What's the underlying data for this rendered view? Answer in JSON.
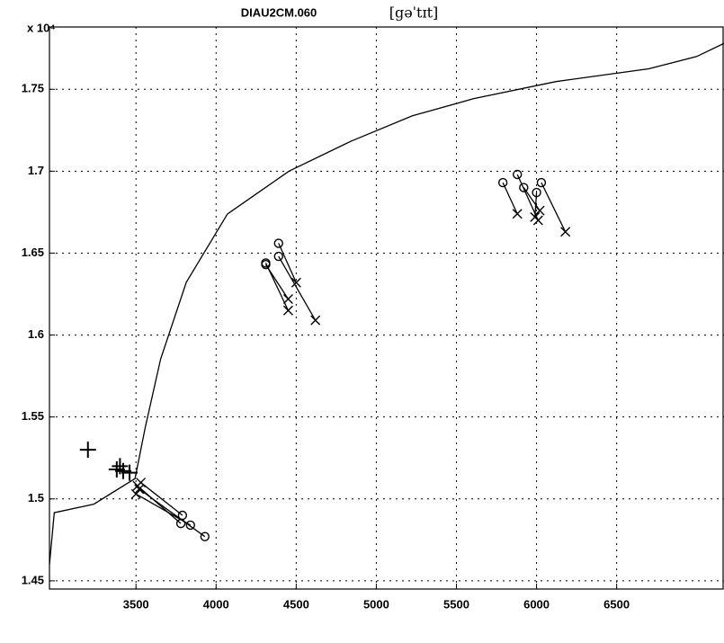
{
  "chart_data": {
    "type": "line",
    "title": "DIAU2CM.060",
    "subtitle": "[gəˈtɪt]",
    "y_multiplier": "x 10⁴",
    "xlim": [
      2960,
      7170
    ],
    "ylim": [
      14450,
      17880
    ],
    "xticks": [
      3500,
      4000,
      4500,
      5000,
      5500,
      6000,
      6500
    ],
    "yticks": [
      {
        "value": 14500,
        "label": "1.45"
      },
      {
        "value": 15000,
        "label": "1.5"
      },
      {
        "value": 15500,
        "label": "1.55"
      },
      {
        "value": 16000,
        "label": "1.6"
      },
      {
        "value": 16500,
        "label": "1.65"
      },
      {
        "value": 17000,
        "label": "1.7"
      },
      {
        "value": 17500,
        "label": "1.75"
      }
    ],
    "grid": true,
    "color": "#000000",
    "series": [
      {
        "x": [
          2960,
          2990,
          3237,
          3494,
          3558,
          3654,
          3814,
          4071,
          4455,
          4840,
          5225,
          5609,
          6122,
          6700,
          7000,
          7170
        ],
        "values": [
          14600,
          14916,
          14968,
          15124,
          15437,
          15854,
          16322,
          16739,
          17000,
          17182,
          17338,
          17443,
          17547,
          17625,
          17700,
          17780
        ]
      },
      {
        "x": [
          5790,
          5880
        ],
        "values": [
          16930,
          16740
        ],
        "start_marker": "o",
        "end_marker": "x"
      },
      {
        "x": [
          5880,
          6010
        ],
        "values": [
          16980,
          16700
        ],
        "start_marker": "o",
        "end_marker": "x"
      },
      {
        "x": [
          5920,
          6020
        ],
        "values": [
          16900,
          16760
        ],
        "start_marker": "o",
        "end_marker": "x"
      },
      {
        "x": [
          6000,
          5990
        ],
        "values": [
          16870,
          16720
        ],
        "start_marker": "o",
        "end_marker": "x"
      },
      {
        "x": [
          6030,
          6180
        ],
        "values": [
          16930,
          16630
        ],
        "start_marker": "o",
        "end_marker": "x"
      },
      {
        "x": [
          4310,
          4450
        ],
        "values": [
          16430,
          16220
        ],
        "start_marker": "o",
        "end_marker": "x"
      },
      {
        "x": [
          4310,
          4450
        ],
        "values": [
          16440,
          16150
        ],
        "start_marker": "o",
        "end_marker": "x"
      },
      {
        "x": [
          4390,
          4500
        ],
        "values": [
          16560,
          16320
        ],
        "start_marker": "o",
        "end_marker": "x"
      },
      {
        "x": [
          4390,
          4620
        ],
        "values": [
          16480,
          16090
        ],
        "start_marker": "o",
        "end_marker": "x"
      },
      {
        "x": [
          3930,
          3520
        ],
        "values": [
          14770,
          15060
        ],
        "start_marker": "o",
        "end_marker": "x"
      },
      {
        "x": [
          3840,
          3500
        ],
        "values": [
          14840,
          15030
        ],
        "start_marker": "o",
        "end_marker": "x"
      },
      {
        "x": [
          3790,
          3530
        ],
        "values": [
          14900,
          15100
        ],
        "start_marker": "o",
        "end_marker": "x"
      },
      {
        "x": [
          3780,
          3510
        ],
        "values": [
          14850,
          15080
        ],
        "start_marker": "o",
        "end_marker": "x"
      },
      {
        "x": [
          3200,
          3380,
          3420,
          3400,
          3460
        ],
        "values": [
          15300,
          15180,
          15170,
          15200,
          15160
        ],
        "marker": "+"
      }
    ]
  }
}
